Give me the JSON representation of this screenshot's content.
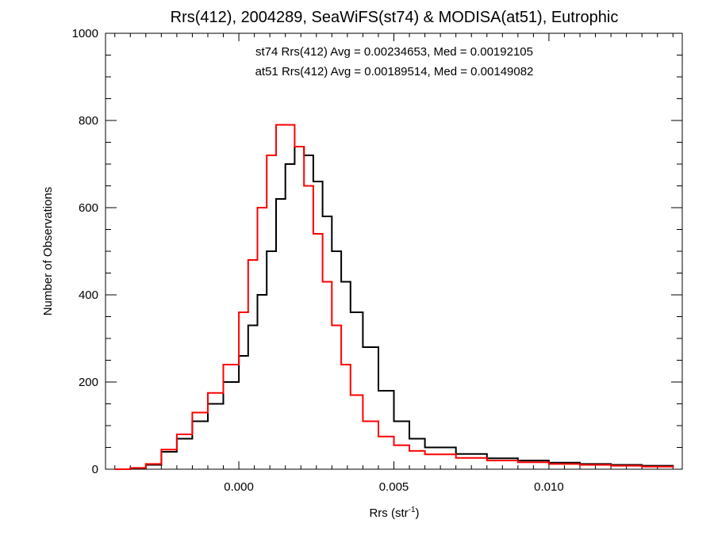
{
  "chart_data": {
    "type": "line",
    "title": "Rrs(412), 2004289, SeaWiFS(st74) & MODISA(at51), Eutrophic",
    "xlabel_main": "Rrs (str",
    "xlabel_sup": "-1",
    "xlabel_close": ")",
    "ylabel": "Number of Observations",
    "xlim": [
      -0.0043,
      0.0143
    ],
    "ylim": [
      0,
      1000
    ],
    "x_ticks": [
      0.0,
      0.005,
      0.01
    ],
    "x_tick_labels": [
      "0.000",
      "0.005",
      "0.010"
    ],
    "y_ticks": [
      0,
      200,
      400,
      600,
      800,
      1000
    ],
    "y_tick_labels": [
      "0",
      "200",
      "400",
      "600",
      "800",
      "1000"
    ],
    "grid": false,
    "annotations": [
      {
        "text": "st74 Rrs(412) Avg = 0.00234653, Med = 0.00192105",
        "color": "#000000"
      },
      {
        "text": "at51 Rrs(412) Avg = 0.00189514, Med = 0.00149082",
        "color": "#ff0000"
      }
    ],
    "series": [
      {
        "color": "#000000",
        "x": [
          -0.004,
          -0.0035,
          -0.003,
          -0.0025,
          -0.002,
          -0.0015,
          -0.001,
          -0.0005,
          0.0,
          0.0003,
          0.0006,
          0.0009,
          0.0012,
          0.0015,
          0.0018,
          0.0021,
          0.0024,
          0.0027,
          0.003,
          0.0033,
          0.0036,
          0.004,
          0.0045,
          0.005,
          0.0055,
          0.006,
          0.007,
          0.008,
          0.009,
          0.01,
          0.011,
          0.012,
          0.013,
          0.014
        ],
        "y": [
          0,
          2,
          10,
          40,
          70,
          110,
          150,
          200,
          260,
          330,
          400,
          500,
          620,
          700,
          740,
          720,
          660,
          580,
          500,
          430,
          360,
          280,
          180,
          110,
          70,
          50,
          35,
          25,
          20,
          15,
          12,
          10,
          8,
          5
        ]
      },
      {
        "color": "#ff0000",
        "x": [
          -0.004,
          -0.0035,
          -0.003,
          -0.0025,
          -0.002,
          -0.0015,
          -0.001,
          -0.0005,
          0.0,
          0.0003,
          0.0006,
          0.0009,
          0.0012,
          0.0015,
          0.0018,
          0.0021,
          0.0024,
          0.0027,
          0.003,
          0.0033,
          0.0036,
          0.004,
          0.0045,
          0.005,
          0.0055,
          0.006,
          0.007,
          0.008,
          0.009,
          0.01,
          0.011,
          0.012,
          0.013,
          0.014
        ],
        "y": [
          0,
          3,
          12,
          45,
          80,
          130,
          175,
          240,
          360,
          480,
          600,
          720,
          790,
          790,
          740,
          650,
          540,
          430,
          330,
          240,
          170,
          110,
          75,
          55,
          42,
          34,
          26,
          20,
          16,
          12,
          10,
          8,
          6,
          4
        ]
      }
    ]
  }
}
